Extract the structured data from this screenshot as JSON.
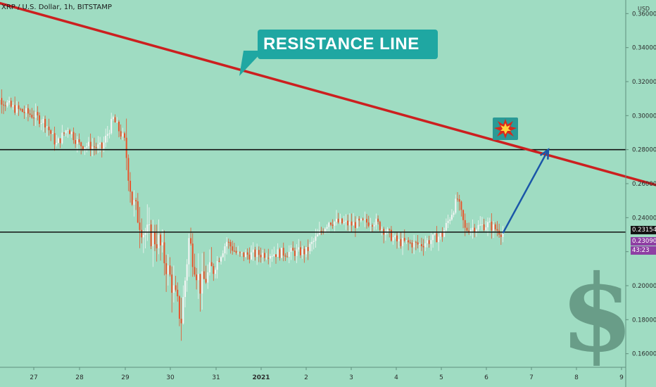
{
  "header": {
    "symbol": "XRP / U.S. Dollar, 1h, BITSTAMP",
    "currency": "USD"
  },
  "callout": {
    "text": "RESISTANCE LINE"
  },
  "icons": {
    "snowman": "snowman-icon",
    "explosion": "explosion-icon",
    "dollar": "dollar-sign-icon"
  },
  "price_tags": {
    "last": "0.23154",
    "current": "0.23090",
    "countdown": "43:23"
  },
  "colors": {
    "background": "#9fdcc2",
    "resistance": "#cc1f1f",
    "candle_up": "#f5f5f5",
    "candle_down": "#e8542b",
    "arrow": "#1a56a8",
    "callout": "#1fa7a2",
    "last_tag": "#141414",
    "current_tag": "#8e3fa3"
  },
  "chart_data": {
    "type": "candlestick",
    "title": "XRP / U.S. Dollar, 1h, BITSTAMP",
    "ylabel": "USD",
    "ylim": [
      0.152,
      0.368
    ],
    "xlim": [
      26.35,
      9.0
    ],
    "x_ticks": [
      "27",
      "28",
      "29",
      "30",
      "31",
      "2021",
      "2",
      "3",
      "4",
      "5",
      "6",
      "7",
      "8",
      "9"
    ],
    "y_ticks": [
      0.16,
      0.18,
      0.2,
      0.22,
      0.24,
      0.26,
      0.28,
      0.3,
      0.32,
      0.34,
      0.36
    ],
    "y_tick_labels": [
      "0.16000",
      "0.18000",
      "0.20000",
      "0.22000",
      "0.24000",
      "0.26000",
      "0.28000",
      "0.30000",
      "0.32000",
      "0.34000",
      "0.36000"
    ],
    "horizontal_lines": [
      0.28,
      0.2315
    ],
    "resistance_line": {
      "start": [
        "Dec 26 00:00",
        0.368
      ],
      "end": [
        "Jan 9 00:00",
        0.257
      ]
    },
    "close_path": [
      [
        "Dec 26 00:00",
        0.315
      ],
      [
        "Dec 26 12:00",
        0.305
      ],
      [
        "Dec 27 00:00",
        0.3
      ],
      [
        "Dec 27 06:00",
        0.296
      ],
      [
        "Dec 27 12:00",
        0.283
      ],
      [
        "Dec 27 18:00",
        0.293
      ],
      [
        "Dec 28 00:00",
        0.283
      ],
      [
        "Dec 28 12:00",
        0.281
      ],
      [
        "Dec 28 18:00",
        0.298
      ],
      [
        "Dec 29 00:00",
        0.285
      ],
      [
        "Dec 29 04:00",
        0.25
      ],
      [
        "Dec 29 10:00",
        0.232
      ],
      [
        "Dec 29 18:00",
        0.226
      ],
      [
        "Dec 30 00:00",
        0.205
      ],
      [
        "Dec 30 06:00",
        0.18
      ],
      [
        "Dec 30 10:00",
        0.227
      ],
      [
        "Dec 30 16:00",
        0.2
      ],
      [
        "Dec 31 00:00",
        0.212
      ],
      [
        "Dec 31 06:00",
        0.226
      ],
      [
        "Dec 31 12:00",
        0.218
      ],
      [
        "Jan 1 00:00",
        0.22
      ],
      [
        "Jan 1 12:00",
        0.238
      ],
      [
        "Jan 2 00:00",
        0.236
      ],
      [
        "Jan 2 12:00",
        0.238
      ],
      [
        "Jan 3 00:00",
        0.226
      ],
      [
        "Jan 3 12:00",
        0.224
      ],
      [
        "Jan 4 00:00",
        0.23
      ],
      [
        "Jan 4 08:00",
        0.251
      ],
      [
        "Jan 4 12:00",
        0.233
      ],
      [
        "Jan 5 00:00",
        0.236
      ],
      [
        "Jan 5 08:00",
        0.2309
      ]
    ],
    "projection_arrow": {
      "from": [
        "Jan 5 08:00",
        0.2309
      ],
      "to": [
        "Jan 6 08:00",
        0.28
      ]
    }
  }
}
